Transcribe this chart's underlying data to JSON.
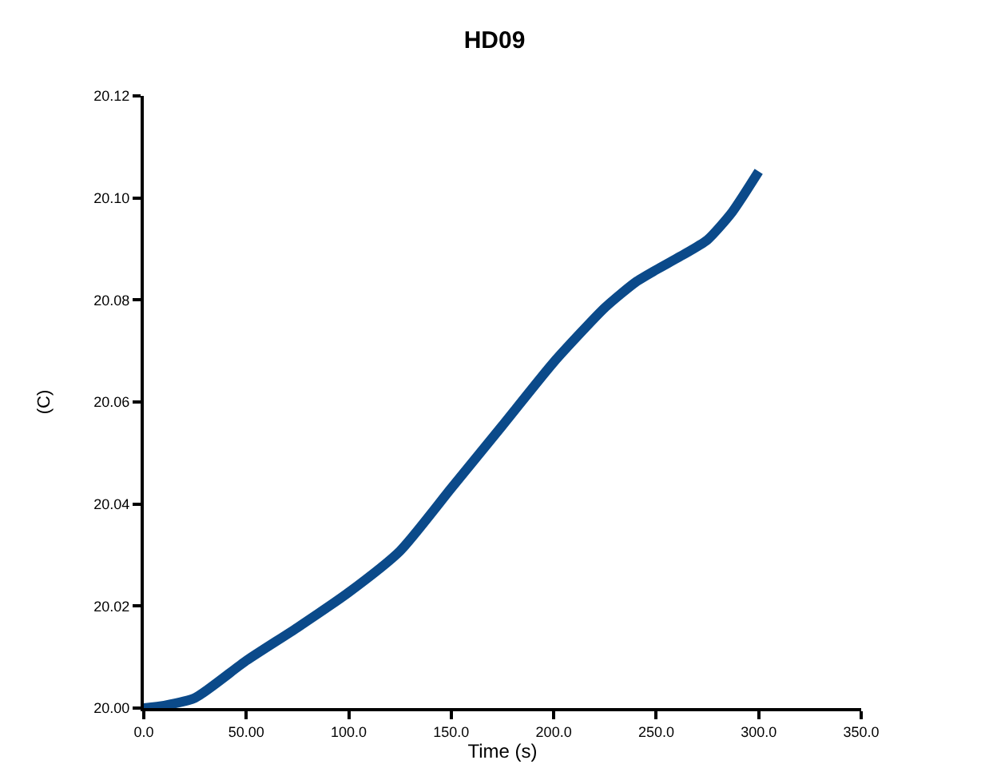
{
  "chart_data": {
    "type": "line",
    "title": "HD09",
    "xlabel": "Time (s)",
    "ylabel": "(C)",
    "x": [
      0,
      10,
      25,
      50,
      75,
      100,
      125,
      150,
      175,
      200,
      225,
      240,
      250,
      262,
      275,
      287,
      300
    ],
    "series": [
      {
        "color": "#0b4a8a",
        "values": [
          20.0,
          20.0005,
          20.002,
          20.0093,
          20.0158,
          20.0227,
          20.0308,
          20.0431,
          20.0554,
          20.0678,
          20.0785,
          20.0835,
          20.0859,
          20.0886,
          20.0918,
          20.0972,
          20.1052
        ]
      }
    ],
    "xlim": [
      0,
      350
    ],
    "ylim": [
      20.0,
      20.12
    ],
    "xticks": [
      {
        "value": 0,
        "label": "0.0"
      },
      {
        "value": 50,
        "label": "50.00"
      },
      {
        "value": 100,
        "label": "100.0"
      },
      {
        "value": 150,
        "label": "150.0"
      },
      {
        "value": 200,
        "label": "200.0"
      },
      {
        "value": 250,
        "label": "250.0"
      },
      {
        "value": 300,
        "label": "300.0"
      },
      {
        "value": 350,
        "label": "350.0"
      }
    ],
    "yticks": [
      {
        "value": 20.0,
        "label": "20.00"
      },
      {
        "value": 20.02,
        "label": "20.02"
      },
      {
        "value": 20.04,
        "label": "20.04"
      },
      {
        "value": 20.06,
        "label": "20.06"
      },
      {
        "value": 20.08,
        "label": "20.08"
      },
      {
        "value": 20.1,
        "label": "20.10"
      },
      {
        "value": 20.12,
        "label": "20.12"
      }
    ],
    "line_style": "solid"
  }
}
